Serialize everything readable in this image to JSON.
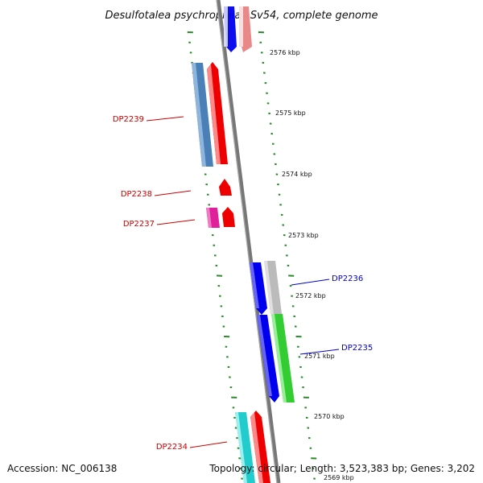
{
  "title": "Desulfotalea psychrophila LSv54, complete genome",
  "footer": {
    "accession": "Accession: NC_006138",
    "topology": "Topology: circular; Length: 3,523,383 bp; Genes: 3,202"
  },
  "scale_labels": [
    "2576 kbp",
    "2575 kbp",
    "2574 kbp",
    "2573 kbp",
    "2572 kbp",
    "2571 kbp",
    "2570 kbp",
    "2569 kbp"
  ],
  "gene_labels": [
    {
      "name": "DP2239",
      "color": "#cc0000"
    },
    {
      "name": "DP2238",
      "color": "#cc0000"
    },
    {
      "name": "DP2237",
      "color": "#cc0000"
    },
    {
      "name": "DP2236",
      "color": "#0000cc"
    },
    {
      "name": "DP2235",
      "color": "#0000cc"
    },
    {
      "name": "DP2234",
      "color": "#cc0000"
    }
  ],
  "colors": {
    "backbone": "#777777",
    "ticks": "#2a8a2a",
    "red": "#ee0000",
    "blue": "#0000ee",
    "steelblue": "#4a7fb8",
    "green": "#33cc33",
    "gray": "#bbbbbb",
    "cyan": "#22cccc",
    "magenta": "#e0209a"
  }
}
